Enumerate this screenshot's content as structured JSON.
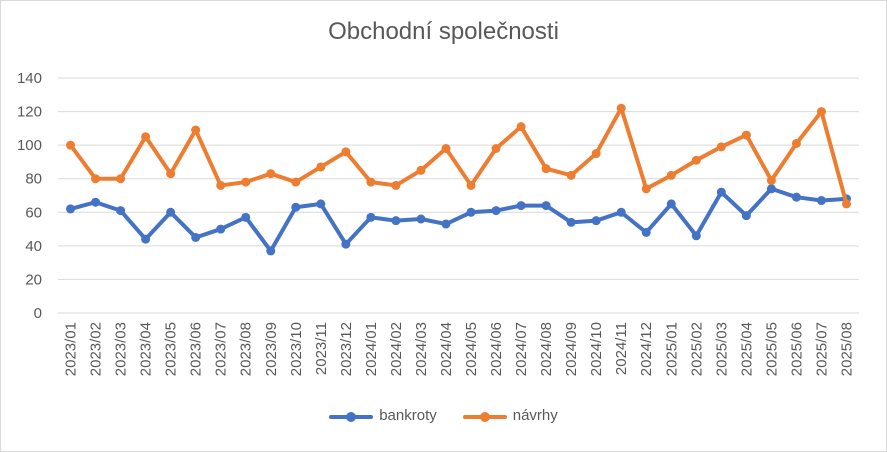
{
  "chart_data": {
    "type": "line",
    "title": "Obchodní společnosti",
    "xlabel": "",
    "ylabel": "",
    "ylim": [
      0,
      140
    ],
    "yticks": [
      "0",
      "20",
      "40",
      "60",
      "80",
      "100",
      "120",
      "140"
    ],
    "grid": true,
    "legend_position": "bottom",
    "categories": [
      "2023/01",
      "2023/02",
      "2023/03",
      "2023/04",
      "2023/05",
      "2023/06",
      "2023/07",
      "2023/08",
      "2023/09",
      "2023/10",
      "2023/11",
      "2023/12",
      "2024/01",
      "2024/02",
      "2024/03",
      "2024/04",
      "2024/05",
      "2024/06",
      "2024/07",
      "2024/08",
      "2024/09",
      "2024/10",
      "2024/11",
      "2024/12",
      "2025/01",
      "2025/02",
      "2025/03",
      "2025/04",
      "2025/05",
      "2025/06",
      "2025/07",
      "2025/08"
    ],
    "series": [
      {
        "name": "bankroty",
        "color": "#4472C4",
        "values": [
          62,
          66,
          61,
          44,
          60,
          45,
          50,
          57,
          37,
          63,
          65,
          41,
          57,
          55,
          56,
          53,
          60,
          61,
          64,
          64,
          54,
          55,
          60,
          48,
          65,
          46,
          72,
          58,
          74,
          69,
          67,
          68
        ]
      },
      {
        "name": "návrhy",
        "color": "#ED7D31",
        "values": [
          100,
          80,
          80,
          105,
          83,
          109,
          76,
          78,
          83,
          78,
          87,
          96,
          78,
          76,
          85,
          98,
          76,
          98,
          111,
          86,
          82,
          95,
          122,
          74,
          82,
          91,
          99,
          106,
          79,
          101,
          120,
          65
        ]
      }
    ]
  }
}
